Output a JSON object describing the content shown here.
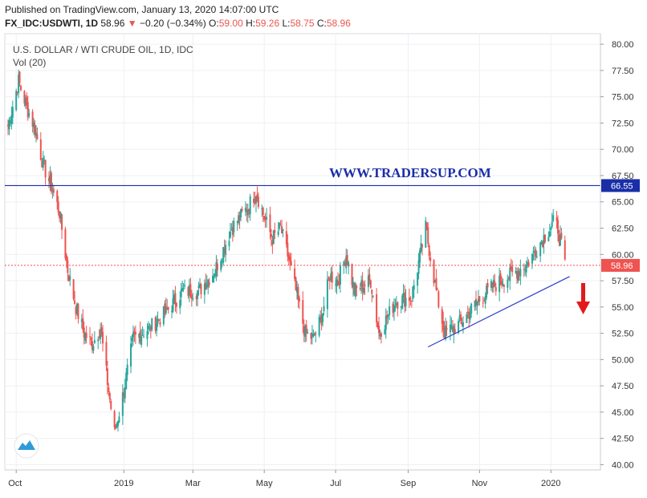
{
  "header": {
    "published": "Published on TradingView.com, January 13, 2020 14:07:00 UTC",
    "symbol": "FX_IDC:USDWTI, 1D",
    "last": "58.96",
    "change": "−0.20 (−0.34%)",
    "open_label": "O:",
    "open": "59.00",
    "high_label": "H:",
    "high": "59.26",
    "low_label": "L:",
    "low": "58.75",
    "close_label": "C:",
    "close": "58.96"
  },
  "legend": {
    "title": "U.S. DOLLAR / WTI CRUDE OIL, 1D, IDC",
    "volume": "Vol (20)"
  },
  "watermark": "WWW.TRADERSUP.COM",
  "price_tags": {
    "resistance": "66.55",
    "last": "58.96"
  },
  "colors": {
    "up": "#26a69a",
    "down": "#ef5350",
    "resistance_line": "#1a2ea8",
    "trend_line": "#2a3fc8",
    "last_line": "#ef5350",
    "arrow": "#e31a1a"
  },
  "chart_data": {
    "type": "candlestick",
    "title": "U.S. DOLLAR / WTI CRUDE OIL, 1D, IDC",
    "ylim": [
      39.5,
      81
    ],
    "y_ticks": [
      "40.00",
      "42.50",
      "45.00",
      "47.50",
      "50.00",
      "52.50",
      "55.00",
      "57.50",
      "60.00",
      "62.50",
      "65.00",
      "67.50",
      "70.00",
      "72.50",
      "75.00",
      "77.50",
      "80.00"
    ],
    "x_ticks": [
      "Oct",
      "2019",
      "Mar",
      "May",
      "Jul",
      "Sep",
      "Nov",
      "2020"
    ],
    "x_range": [
      "2018-10-01",
      "2020-01-31"
    ],
    "resistance_level": 66.55,
    "last_price": 58.96,
    "trendline": {
      "start": [
        "2019-09-18",
        51.2
      ],
      "end": [
        "2020-01-17",
        57.9
      ]
    },
    "grid": true,
    "anchors": [
      [
        "2018-09-24",
        72.2
      ],
      [
        "2018-10-03",
        76.5
      ],
      [
        "2018-10-10",
        74.0
      ],
      [
        "2018-10-17",
        72.0
      ],
      [
        "2018-10-24",
        68.5
      ],
      [
        "2018-10-31",
        66.5
      ],
      [
        "2018-11-07",
        64.0
      ],
      [
        "2018-11-14",
        58.5
      ],
      [
        "2018-11-21",
        55.0
      ],
      [
        "2018-11-28",
        52.5
      ],
      [
        "2018-12-05",
        51.5
      ],
      [
        "2018-12-12",
        53.0
      ],
      [
        "2018-12-19",
        47.0
      ],
      [
        "2018-12-24",
        43.0
      ],
      [
        "2018-12-31",
        46.5
      ],
      [
        "2019-01-09",
        52.0
      ],
      [
        "2019-01-23",
        53.0
      ],
      [
        "2019-02-06",
        54.5
      ],
      [
        "2019-02-20",
        56.5
      ],
      [
        "2019-03-06",
        56.5
      ],
      [
        "2019-03-20",
        58.5
      ],
      [
        "2019-04-03",
        62.5
      ],
      [
        "2019-04-17",
        64.5
      ],
      [
        "2019-04-24",
        66.0
      ],
      [
        "2019-05-01",
        63.5
      ],
      [
        "2019-05-08",
        61.5
      ],
      [
        "2019-05-15",
        62.5
      ],
      [
        "2019-05-22",
        59.5
      ],
      [
        "2019-05-29",
        56.0
      ],
      [
        "2019-06-05",
        52.5
      ],
      [
        "2019-06-12",
        52.0
      ],
      [
        "2019-06-19",
        54.0
      ],
      [
        "2019-06-26",
        58.0
      ],
      [
        "2019-07-03",
        57.5
      ],
      [
        "2019-07-10",
        60.0
      ],
      [
        "2019-07-17",
        56.5
      ],
      [
        "2019-07-31",
        57.5
      ],
      [
        "2019-08-07",
        52.5
      ],
      [
        "2019-08-21",
        55.5
      ],
      [
        "2019-09-04",
        56.0
      ],
      [
        "2019-09-16",
        62.5
      ],
      [
        "2019-09-25",
        56.5
      ],
      [
        "2019-10-02",
        52.5
      ],
      [
        "2019-10-16",
        53.5
      ],
      [
        "2019-10-30",
        55.5
      ],
      [
        "2019-11-13",
        57.0
      ],
      [
        "2019-11-27",
        58.0
      ],
      [
        "2019-12-11",
        59.0
      ],
      [
        "2019-12-25",
        61.5
      ],
      [
        "2020-01-03",
        63.0
      ],
      [
        "2020-01-07",
        62.5
      ],
      [
        "2020-01-13",
        58.96
      ]
    ]
  }
}
